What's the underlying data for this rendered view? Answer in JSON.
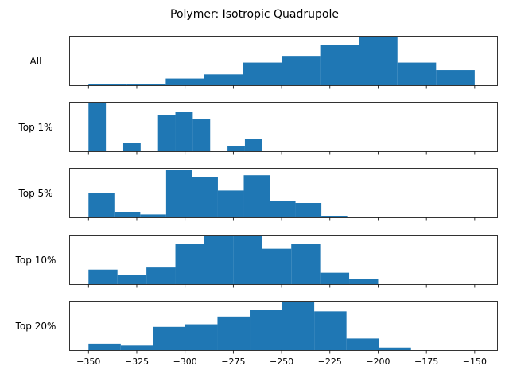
{
  "chart_data": {
    "type": "bar",
    "title": "Polymer: Isotropic Quadrupole",
    "xlim": [
      -360,
      -138
    ],
    "xticks": [
      -350,
      -325,
      -300,
      -275,
      -250,
      -225,
      -200,
      -175,
      -150
    ],
    "xtick_labels": [
      "−350",
      "−325",
      "−300",
      "−275",
      "−250",
      "−225",
      "−200",
      "−175",
      "−150"
    ],
    "bar_color": "#1f77b4",
    "panels": [
      {
        "label": "All",
        "bins": [
          [
            -350,
            -330
          ],
          [
            -330,
            -310
          ],
          [
            -310,
            -290
          ],
          [
            -290,
            -270
          ],
          [
            -270,
            -250
          ],
          [
            -250,
            -230
          ],
          [
            -230,
            -210
          ],
          [
            -210,
            -190
          ],
          [
            -190,
            -170
          ],
          [
            -170,
            -150
          ]
        ],
        "values": [
          1,
          1,
          8,
          13,
          27,
          35,
          48,
          57,
          27,
          18
        ],
        "ymax": 57
      },
      {
        "label": "Top 1%",
        "bins": [
          [
            -350,
            -341
          ],
          [
            -332,
            -323
          ],
          [
            -314,
            -305
          ],
          [
            -305,
            -296
          ],
          [
            -296,
            -287
          ],
          [
            -278,
            -269
          ],
          [
            -269,
            -260
          ]
        ],
        "values": [
          6,
          1,
          4.6,
          4.9,
          4,
          0.6,
          1.5
        ],
        "ymax": 6
      },
      {
        "label": "Top 5%",
        "bins": [
          [
            -350,
            -336.6
          ],
          [
            -336.6,
            -323.2
          ],
          [
            -323.2,
            -309.8
          ],
          [
            -309.8,
            -296.4
          ],
          [
            -296.4,
            -283
          ],
          [
            -283,
            -269.6
          ],
          [
            -269.6,
            -256.2
          ],
          [
            -256.2,
            -242.8
          ],
          [
            -242.8,
            -229.4
          ],
          [
            -229.4,
            -216
          ]
        ],
        "values": [
          12.5,
          2.5,
          1.5,
          25,
          21,
          14,
          22,
          8.5,
          7.5,
          0.5
        ],
        "ymax": 25
      },
      {
        "label": "Top 10%",
        "bins": [
          [
            -350,
            -335
          ],
          [
            -335,
            -320
          ],
          [
            -320,
            -305
          ],
          [
            -305,
            -290
          ],
          [
            -290,
            -275
          ],
          [
            -275,
            -260
          ],
          [
            -260,
            -245
          ],
          [
            -245,
            -230
          ],
          [
            -230,
            -215
          ],
          [
            -215,
            -200
          ]
        ],
        "values": [
          7,
          4.5,
          8,
          19.5,
          23,
          23,
          17,
          19.5,
          5.5,
          2.5
        ],
        "ymax": 23
      },
      {
        "label": "Top 20%",
        "bins": [
          [
            -350,
            -333.3
          ],
          [
            -333.3,
            -316.6
          ],
          [
            -316.6,
            -299.9
          ],
          [
            -299.9,
            -283.2
          ],
          [
            -283.2,
            -266.5
          ],
          [
            -266.5,
            -249.8
          ],
          [
            -249.8,
            -233.1
          ],
          [
            -233.1,
            -216.4
          ],
          [
            -216.4,
            -199.7
          ],
          [
            -199.7,
            -183
          ]
        ],
        "values": [
          5,
          3.5,
          18,
          20,
          26,
          31,
          37,
          30,
          9,
          2
        ],
        "ymax": 37
      }
    ]
  }
}
